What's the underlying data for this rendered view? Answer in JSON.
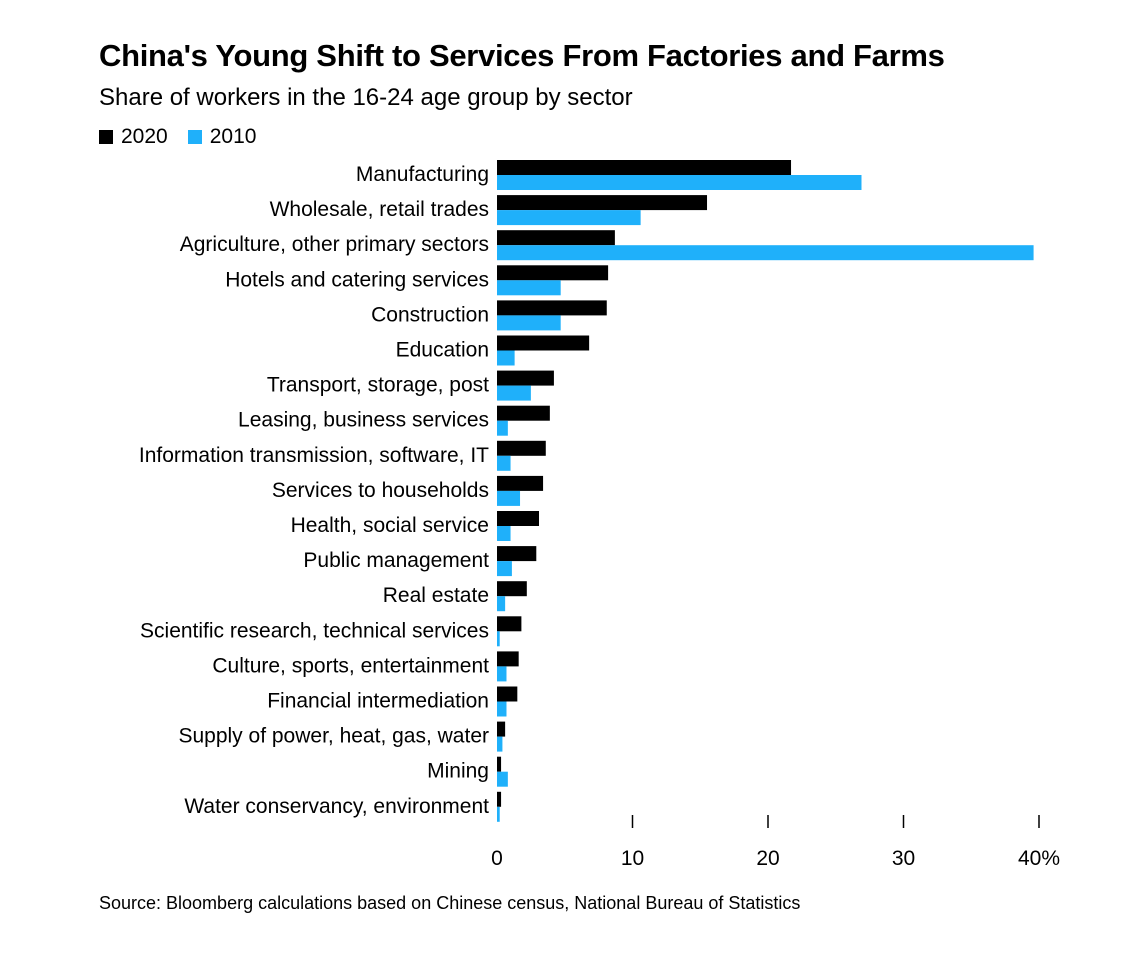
{
  "chart_data": {
    "type": "bar",
    "orientation": "horizontal",
    "title": "China's Young Shift to Services From Factories and Farms",
    "subtitle": "Share of workers in the 16-24 age group by sector",
    "categories": [
      "Manufacturing",
      "Wholesale, retail trades",
      "Agriculture, other primary sectors",
      "Hotels and catering services",
      "Construction",
      "Education",
      "Transport, storage, post",
      "Leasing, business services",
      "Information transmission, software, IT",
      "Services to households",
      "Health, social service",
      "Public management",
      "Real estate",
      "Scientific research, technical services",
      "Culture, sports, entertainment",
      "Financial intermediation",
      "Supply of power, heat, gas, water",
      "Mining",
      "Water conservancy, environment"
    ],
    "series": [
      {
        "name": "2020",
        "color": "#000000",
        "values": [
          21.7,
          15.5,
          8.7,
          8.2,
          8.1,
          6.8,
          4.2,
          3.9,
          3.6,
          3.4,
          3.1,
          2.9,
          2.2,
          1.8,
          1.6,
          1.5,
          0.6,
          0.3,
          0.3
        ]
      },
      {
        "name": "2010",
        "color": "#1fb0fa",
        "values": [
          26.9,
          10.6,
          39.6,
          4.7,
          4.7,
          1.3,
          2.5,
          0.8,
          1.0,
          1.7,
          1.0,
          1.1,
          0.6,
          0.2,
          0.7,
          0.7,
          0.4,
          0.8,
          0.2
        ]
      }
    ],
    "xlim": [
      0,
      40
    ],
    "xticks": [
      0,
      10,
      20,
      30,
      40
    ],
    "xtick_labels": [
      "0",
      "10",
      "20",
      "30",
      "40%"
    ],
    "grid": false,
    "legend_position": "top-left"
  },
  "source": "Source: Bloomberg calculations based on Chinese census, National Bureau of Statistics"
}
